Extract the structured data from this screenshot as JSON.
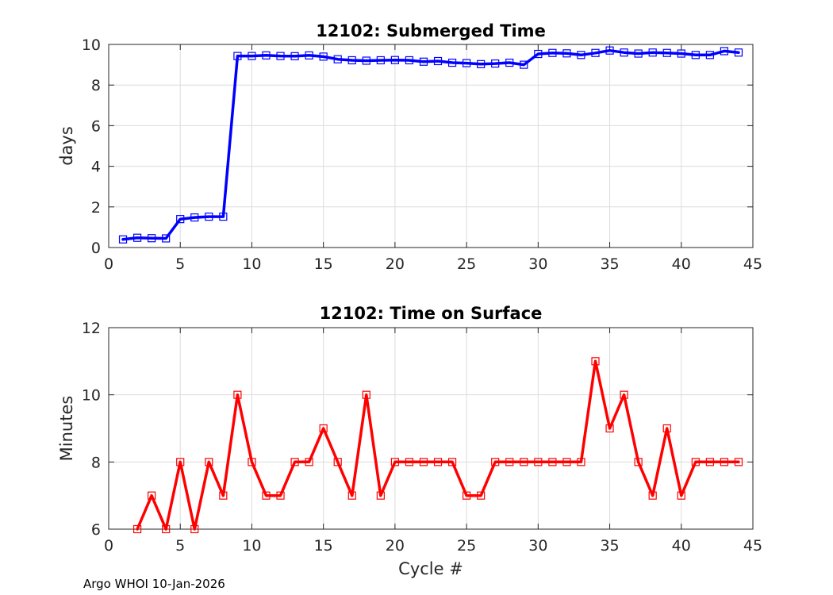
{
  "footer": "Argo WHOI 10-Jan-2026",
  "chart_data": [
    {
      "type": "line",
      "title": "12102: Submerged Time",
      "xlabel": "",
      "ylabel": "days",
      "xlim": [
        0,
        45
      ],
      "ylim": [
        0,
        10
      ],
      "xticks": [
        0,
        5,
        10,
        15,
        20,
        25,
        30,
        35,
        40,
        45
      ],
      "yticks": [
        0,
        2,
        4,
        6,
        8,
        10
      ],
      "grid": true,
      "color": "#0000ff",
      "marker": "square",
      "x": [
        1,
        2,
        3,
        4,
        5,
        6,
        7,
        8,
        9,
        10,
        11,
        12,
        13,
        14,
        15,
        16,
        17,
        18,
        19,
        20,
        21,
        22,
        23,
        24,
        25,
        26,
        27,
        28,
        29,
        30,
        31,
        32,
        33,
        34,
        35,
        36,
        37,
        38,
        39,
        40,
        41,
        42,
        43,
        44
      ],
      "y": [
        0.4,
        0.48,
        0.46,
        0.45,
        1.4,
        1.48,
        1.52,
        1.52,
        9.43,
        9.43,
        9.46,
        9.43,
        9.42,
        9.46,
        9.4,
        9.27,
        9.22,
        9.2,
        9.22,
        9.23,
        9.22,
        9.15,
        9.18,
        9.1,
        9.08,
        9.03,
        9.06,
        9.1,
        9.0,
        9.53,
        9.58,
        9.56,
        9.48,
        9.58,
        9.7,
        9.6,
        9.55,
        9.6,
        9.58,
        9.55,
        9.48,
        9.48,
        9.67,
        9.6
      ]
    },
    {
      "type": "line",
      "title": "12102: Time on Surface",
      "xlabel": "Cycle #",
      "ylabel": "Minutes",
      "xlim": [
        0,
        45
      ],
      "ylim": [
        6,
        12
      ],
      "xticks": [
        0,
        5,
        10,
        15,
        20,
        25,
        30,
        35,
        40,
        45
      ],
      "yticks": [
        6,
        8,
        10,
        12
      ],
      "grid": true,
      "color": "#ff0000",
      "marker": "square",
      "x": [
        2,
        3,
        4,
        5,
        6,
        7,
        8,
        9,
        10,
        11,
        12,
        13,
        14,
        15,
        16,
        17,
        18,
        19,
        20,
        21,
        22,
        23,
        24,
        25,
        26,
        27,
        28,
        29,
        30,
        31,
        32,
        33,
        34,
        35,
        36,
        37,
        38,
        39,
        40,
        41,
        42,
        43,
        44
      ],
      "y": [
        6,
        7,
        6,
        8,
        6,
        8,
        7,
        10,
        8,
        7,
        7,
        8,
        8,
        9,
        8,
        7,
        10,
        7,
        8,
        8,
        8,
        8,
        8,
        7,
        7,
        8,
        8,
        8,
        8,
        8,
        8,
        8,
        11,
        9,
        10,
        8,
        7,
        9,
        7,
        8,
        8,
        8,
        8
      ]
    }
  ]
}
